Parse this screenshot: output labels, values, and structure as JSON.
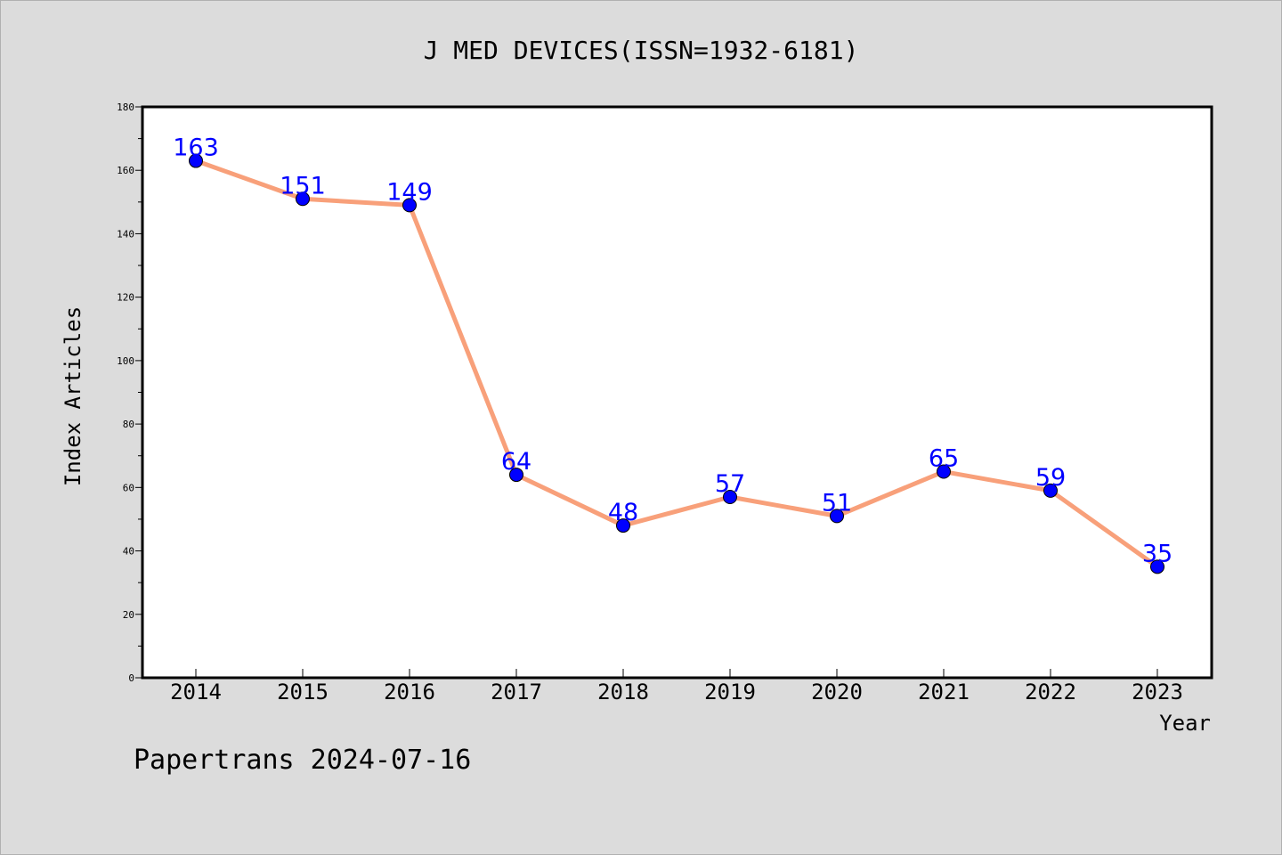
{
  "chart_data": {
    "type": "line",
    "title": "J MED DEVICES(ISSN=1932-6181)",
    "xlabel": "Year",
    "ylabel": "Index Articles",
    "ylim": [
      0,
      180
    ],
    "yticks": [
      0,
      20,
      40,
      60,
      80,
      100,
      120,
      140,
      160,
      180
    ],
    "categories": [
      "2014",
      "2015",
      "2016",
      "2017",
      "2018",
      "2019",
      "2020",
      "2021",
      "2022",
      "2023"
    ],
    "values": [
      163,
      151,
      149,
      64,
      48,
      57,
      51,
      65,
      59,
      35
    ],
    "footer": "Papertrans 2024-07-16",
    "colors": {
      "background": "#dcdcdc",
      "plot_area": "#ffffff",
      "line": "#f8a07a",
      "marker": "#0000ff",
      "data_label": "#0000ff",
      "text": "#000000"
    }
  }
}
